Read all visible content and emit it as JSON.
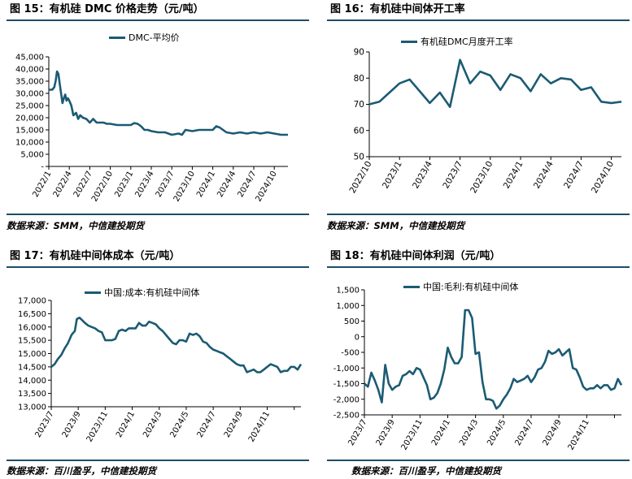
{
  "colors": {
    "series": "#1b5b73",
    "rule": "#1d4e6b",
    "axis": "#000000"
  },
  "charts": [
    {
      "id": "c15",
      "title": "图 15：有机硅 DMC 价格走势（元/吨）",
      "source": "数据来源：SMM，中信建投期货",
      "chart_data": {
        "type": "line",
        "legend": "DMC-平均价",
        "ylim": [
          0,
          45000
        ],
        "yticks": [
          0,
          5000,
          10000,
          15000,
          20000,
          25000,
          30000,
          35000,
          40000,
          45000
        ],
        "yticklabels": [
          "-",
          "5,000",
          "10,000",
          "15,000",
          "20,000",
          "25,000",
          "30,000",
          "35,000",
          "40,000",
          "45,000"
        ],
        "xlim": [
          0,
          35
        ],
        "xticks": [
          0,
          3,
          6,
          9,
          12,
          15,
          18,
          21,
          24,
          27,
          30,
          33
        ],
        "xticklabels": [
          "2022/1",
          "2022/4",
          "2022/7",
          "2022/10",
          "2023/1",
          "2023/4",
          "2023/7",
          "2023/10",
          "2024/1",
          "2024/4",
          "2024/7",
          "2024/10"
        ],
        "x": [
          0,
          0.5,
          0.8,
          1.0,
          1.2,
          1.4,
          1.6,
          1.8,
          2.0,
          2.2,
          2.4,
          2.6,
          2.8,
          3.0,
          3.3,
          3.6,
          4.0,
          4.3,
          4.6,
          5.0,
          5.5,
          6.0,
          6.5,
          7.0,
          7.5,
          8.0,
          8.5,
          9.0,
          10.0,
          11.0,
          12.0,
          12.5,
          13.0,
          13.5,
          14.0,
          14.5,
          15.0,
          16.0,
          17.0,
          18.0,
          19.0,
          19.5,
          20.0,
          21.0,
          22.0,
          23.0,
          24.0,
          24.5,
          25.0,
          25.5,
          26.0,
          27.0,
          28.0,
          29.0,
          30.0,
          31.0,
          32.0,
          33.0,
          34.0,
          35.0
        ],
        "values": [
          31500,
          31500,
          32500,
          35000,
          39000,
          38000,
          34000,
          30000,
          26000,
          28000,
          29500,
          27000,
          28000,
          27000,
          25000,
          21000,
          22000,
          19500,
          21000,
          20000,
          19500,
          18000,
          19500,
          18000,
          18000,
          18000,
          17500,
          17500,
          17000,
          17000,
          17000,
          17800,
          17500,
          16500,
          15000,
          15000,
          14500,
          14000,
          14000,
          13000,
          13500,
          13000,
          15000,
          14500,
          15000,
          15000,
          15000,
          16500,
          16000,
          15000,
          14000,
          13500,
          14000,
          13500,
          14000,
          13500,
          14000,
          13500,
          13000,
          13000
        ]
      }
    },
    {
      "id": "c16",
      "title": "图 16：有机硅中间体开工率",
      "source": "数据来源：SMM，中信建投期货",
      "chart_data": {
        "type": "line",
        "legend": "有机硅DMC月度开工率",
        "ylim": [
          50,
          90
        ],
        "yticks": [
          50,
          60,
          70,
          80,
          90
        ],
        "yticklabels": [
          "50",
          "60",
          "70",
          "80",
          "90"
        ],
        "xlim": [
          0,
          25
        ],
        "xticks": [
          0,
          3,
          6,
          9,
          12,
          15,
          18,
          21,
          24
        ],
        "xticklabels": [
          "2022/10",
          "2023/1",
          "2023/4",
          "2023/7",
          "2023/10",
          "2024/1",
          "2024/4",
          "2024/7",
          "2024/10"
        ],
        "x": [
          0,
          1,
          2,
          3,
          4,
          5,
          6,
          7,
          8,
          9,
          10,
          11,
          12,
          13,
          14,
          15,
          16,
          17,
          18,
          19,
          20,
          21,
          22,
          23,
          24,
          25
        ],
        "values": [
          70,
          71,
          74.5,
          78,
          79.5,
          75,
          70.5,
          74.5,
          69,
          87,
          78,
          82.5,
          81,
          75.5,
          81.5,
          80,
          75,
          81.5,
          78,
          80,
          79.5,
          75.5,
          76.5,
          71,
          70.5,
          71
        ]
      }
    },
    {
      "id": "c17",
      "title": "图 17：有机硅中间体成本（元/吨）",
      "source": "数据来源：百川盈孚，中信建投期货",
      "chart_data": {
        "type": "line",
        "legend": "中国:成本:有机硅中间体",
        "ylim": [
          13000,
          17000
        ],
        "yticks": [
          13000,
          13500,
          14000,
          14500,
          15000,
          15500,
          16000,
          16500,
          17000
        ],
        "yticklabels": [
          "13,000",
          "13,500",
          "14,000",
          "14,500",
          "15,000",
          "15,500",
          "16,000",
          "16,500",
          "17,000"
        ],
        "xlim": [
          0,
          37
        ],
        "xticks": [
          0,
          4,
          8,
          12,
          16,
          20,
          24,
          28,
          32,
          36
        ],
        "xticklabels": [
          "2023/7",
          "2023/9",
          "2023/11",
          "2024/1",
          "2024/3",
          "2024/5",
          "2024/7",
          "2024/9",
          "2024/11",
          ""
        ],
        "x": [
          0,
          0.5,
          1,
          1.5,
          2,
          2.5,
          3,
          3.5,
          3.8,
          4.2,
          4.6,
          5,
          5.5,
          6,
          6.5,
          7,
          7.5,
          8,
          8.5,
          9,
          9.5,
          10,
          10.5,
          11,
          11.5,
          12,
          12.5,
          13,
          13.5,
          14,
          14.5,
          15,
          15.5,
          16,
          16.5,
          17,
          17.5,
          18,
          18.5,
          19,
          19.5,
          20,
          20.5,
          21,
          21.5,
          22,
          22.5,
          23,
          23.5,
          24,
          24.5,
          25,
          25.5,
          26,
          26.5,
          27,
          27.5,
          28,
          28.5,
          29,
          29.5,
          30,
          30.5,
          31,
          31.5,
          32,
          32.5,
          33,
          33.5,
          34,
          34.5,
          35,
          35.5,
          36,
          36.5,
          37
        ],
        "values": [
          14500,
          14600,
          14800,
          14950,
          15200,
          15400,
          15700,
          15850,
          16300,
          16350,
          16250,
          16150,
          16050,
          16000,
          15950,
          15850,
          15800,
          15500,
          15500,
          15500,
          15550,
          15850,
          15900,
          15850,
          15950,
          15950,
          15950,
          16150,
          16050,
          16050,
          16200,
          16150,
          16100,
          15950,
          15850,
          15700,
          15550,
          15400,
          15350,
          15500,
          15500,
          15450,
          15750,
          15700,
          15750,
          15650,
          15450,
          15400,
          15250,
          15150,
          15100,
          15050,
          15000,
          14900,
          14800,
          14700,
          14600,
          14550,
          14550,
          14300,
          14350,
          14400,
          14300,
          14300,
          14400,
          14500,
          14600,
          14550,
          14500,
          14300,
          14350,
          14350,
          14500,
          14500,
          14400,
          14600
        ]
      }
    },
    {
      "id": "c18",
      "title": "图 18：有机硅中间体利润（元/吨）",
      "source": "数据来源：百川盈孚，中信建投期货",
      "chart_data": {
        "type": "line",
        "legend": "中国:毛利:有机硅中间体",
        "ylim": [
          -2500,
          1500
        ],
        "yticks": [
          -2500,
          -2000,
          -1500,
          -1000,
          -500,
          0,
          500,
          1000,
          1500
        ],
        "yticklabels": [
          "-2,500",
          "-2,000",
          "-1,500",
          "-1,000",
          "-500",
          "0",
          "500",
          "1,000",
          "1,500"
        ],
        "xlim": [
          0,
          37
        ],
        "xticks": [
          0,
          4,
          8,
          12,
          16,
          20,
          24,
          28,
          32,
          36
        ],
        "xticklabels": [
          "2023/7",
          "2023/9",
          "2023/11",
          "2024/1",
          "2024/3",
          "2024/5",
          "2024/7",
          "2024/9",
          "2024/11",
          ""
        ],
        "x": [
          0,
          0.5,
          1,
          1.5,
          2,
          2.5,
          3,
          3.5,
          4,
          4.5,
          5,
          5.5,
          6,
          6.5,
          7,
          7.5,
          8,
          8.5,
          9,
          9.5,
          10,
          10.5,
          11,
          11.5,
          12,
          12.5,
          13,
          13.5,
          14,
          14.5,
          15,
          15.5,
          16,
          16.5,
          17,
          17.5,
          18,
          18.5,
          19,
          19.5,
          20,
          20.5,
          21,
          21.5,
          22,
          22.5,
          23,
          23.5,
          24,
          24.5,
          25,
          25.5,
          26,
          26.5,
          27,
          27.5,
          28,
          28.5,
          29,
          29.5,
          30,
          30.5,
          31,
          31.5,
          32,
          32.5,
          33,
          33.5,
          34,
          34.5,
          35,
          35.5,
          36,
          36.5,
          37
        ],
        "values": [
          -1500,
          -1600,
          -1150,
          -1400,
          -1700,
          -2100,
          -900,
          -1500,
          -1700,
          -1600,
          -1550,
          -1250,
          -1200,
          -1100,
          -1200,
          -1000,
          -1050,
          -1300,
          -1550,
          -2000,
          -1950,
          -1800,
          -1500,
          -1050,
          -350,
          -650,
          -850,
          -850,
          -650,
          850,
          850,
          600,
          -550,
          -500,
          -1450,
          -2000,
          -2000,
          -2050,
          -2300,
          -2200,
          -2000,
          -1850,
          -1650,
          -1350,
          -1450,
          -1400,
          -1350,
          -1250,
          -1450,
          -1300,
          -1050,
          -1000,
          -800,
          -450,
          -550,
          -500,
          -400,
          -600,
          -500,
          -400,
          -1000,
          -1050,
          -1300,
          -1600,
          -1700,
          -1650,
          -1650,
          -1550,
          -1650,
          -1550,
          -1550,
          -1700,
          -1650,
          -1350,
          -1550
        ]
      }
    }
  ]
}
